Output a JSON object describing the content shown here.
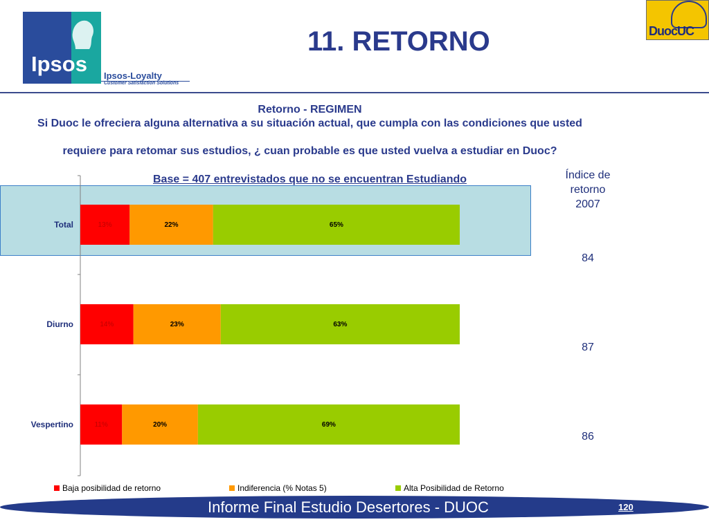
{
  "header": {
    "title": "11. RETORNO",
    "ipsos_logo_text": "Ipsos",
    "loyalty_text": "Ipsos-Loyalty",
    "loyalty_tagline": "Customer Satisfaction Solutions",
    "duoc_logo_text": "DuocUC"
  },
  "question": {
    "heading": "Retorno - REGIMEN",
    "line1": "Si Duoc le ofreciera alguna alternativa a su situación actual, que cumpla con las condiciones que usted",
    "line2": "requiere para retomar sus estudios, ¿ cuan probable es que usted vuelva a estudiar en Duoc?",
    "base": "Base = 407 entrevistados que  no se encuentran Estudiando"
  },
  "index": {
    "header": [
      "Índice de",
      "retorno",
      "2007"
    ],
    "values": [
      "84",
      "87",
      "86"
    ]
  },
  "chart_data": {
    "type": "bar",
    "orientation": "horizontal",
    "stacked": true,
    "percent": true,
    "categories": [
      "Total",
      "Diurno",
      "Vespertino"
    ],
    "series": [
      {
        "name": "Baja posibilidad de retorno",
        "values": [
          13,
          14,
          11
        ],
        "labels": [
          "13%",
          "14%",
          "11%"
        ],
        "color": "#ff0000",
        "label_color": "#c00000"
      },
      {
        "name": "Indiferencia (% Notas 5)",
        "values": [
          22,
          23,
          20
        ],
        "labels": [
          "22%",
          "23%",
          "20%"
        ],
        "color": "#ff9900",
        "label_color": "#000000"
      },
      {
        "name": "Alta Posibilidad de Retorno",
        "values": [
          65,
          63,
          69
        ],
        "labels": [
          "65%",
          "63%",
          "69%"
        ],
        "color": "#99cc00",
        "label_color": "#000000"
      }
    ],
    "xlim": [
      0,
      100
    ],
    "legend_position": "bottom",
    "highlighted_category": "Total"
  },
  "footer": {
    "text": "Informe Final Estudio Desertores - DUOC",
    "page": "120"
  },
  "colors": {
    "title": "#2a3a8c",
    "footer_bg": "#243b8a",
    "highlight_bg": "#b8dde3"
  }
}
